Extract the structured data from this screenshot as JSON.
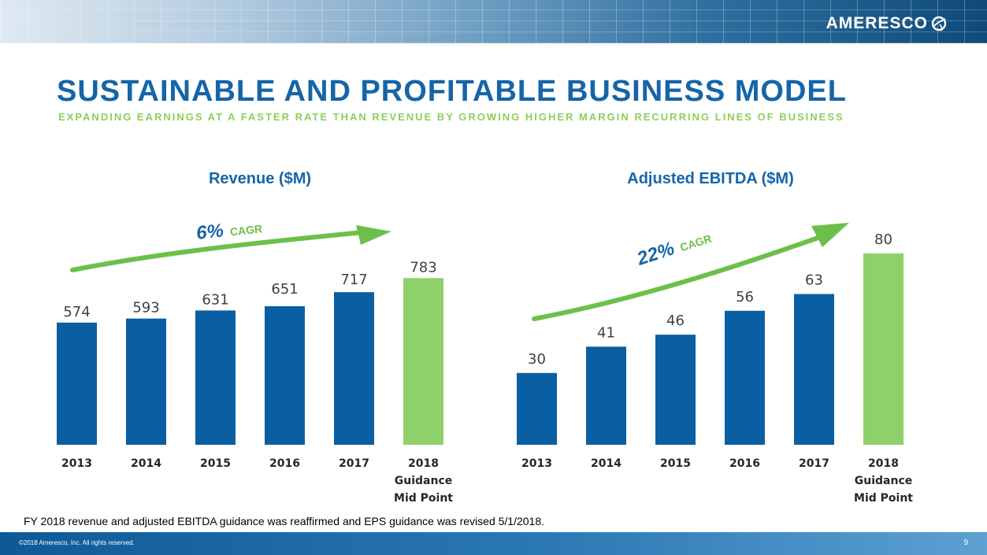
{
  "header": {
    "logo_text": "AMERESCO",
    "logo_icon": "globe-leaf-icon",
    "title": "SUSTAINABLE AND PROFITABLE BUSINESS MODEL",
    "subtitle": "EXPANDING EARNINGS AT A FASTER RATE THAN REVENUE BY GROWING HIGHER MARGIN RECURRING LINES OF BUSINESS"
  },
  "colors": {
    "bar_actual": "#0a5fa3",
    "bar_guidance": "#8ed06a",
    "arrow": "#6cc04a",
    "title": "#1565a8",
    "cagr_number": "#1565a8",
    "cagr_label": "#6cc04a"
  },
  "chart_data": [
    {
      "type": "bar",
      "title": "Revenue ($M)",
      "categories": [
        "2013",
        "2014",
        "2015",
        "2016",
        "2017",
        "2018 Guidance Mid Point"
      ],
      "category_lines": [
        [
          "2013"
        ],
        [
          "2014"
        ],
        [
          "2015"
        ],
        [
          "2016"
        ],
        [
          "2017"
        ],
        [
          "2018",
          "Guidance",
          "Mid Point"
        ]
      ],
      "values": [
        574,
        593,
        631,
        651,
        717,
        783
      ],
      "value_labels": [
        "574",
        "593",
        "631",
        "651",
        "717",
        "783"
      ],
      "highlight_index": 5,
      "annotation": {
        "cagr_value": "6%",
        "cagr_label": "CAGR"
      },
      "xlabel": "",
      "ylabel": ""
    },
    {
      "type": "bar",
      "title": "Adjusted EBITDA ($M)",
      "categories": [
        "2013",
        "2014",
        "2015",
        "2016",
        "2017",
        "2018 Guidance Mid Point"
      ],
      "category_lines": [
        [
          "2013"
        ],
        [
          "2014"
        ],
        [
          "2015"
        ],
        [
          "2016"
        ],
        [
          "2017"
        ],
        [
          "2018",
          "Guidance",
          "Mid Point"
        ]
      ],
      "values": [
        30,
        41,
        46,
        56,
        63,
        80
      ],
      "value_labels": [
        "30",
        "41",
        "46",
        "56",
        "63",
        "80"
      ],
      "highlight_index": 5,
      "annotation": {
        "cagr_value": "22%",
        "cagr_label": "CAGR"
      },
      "xlabel": "",
      "ylabel": ""
    }
  ],
  "footnote": "FY 2018 revenue and adjusted EBITDA guidance was reaffirmed and EPS guidance was revised 5/1/2018.",
  "footer": {
    "copyright": "©2018 Ameresco, Inc. All rights reserved.",
    "page_number": "9"
  }
}
